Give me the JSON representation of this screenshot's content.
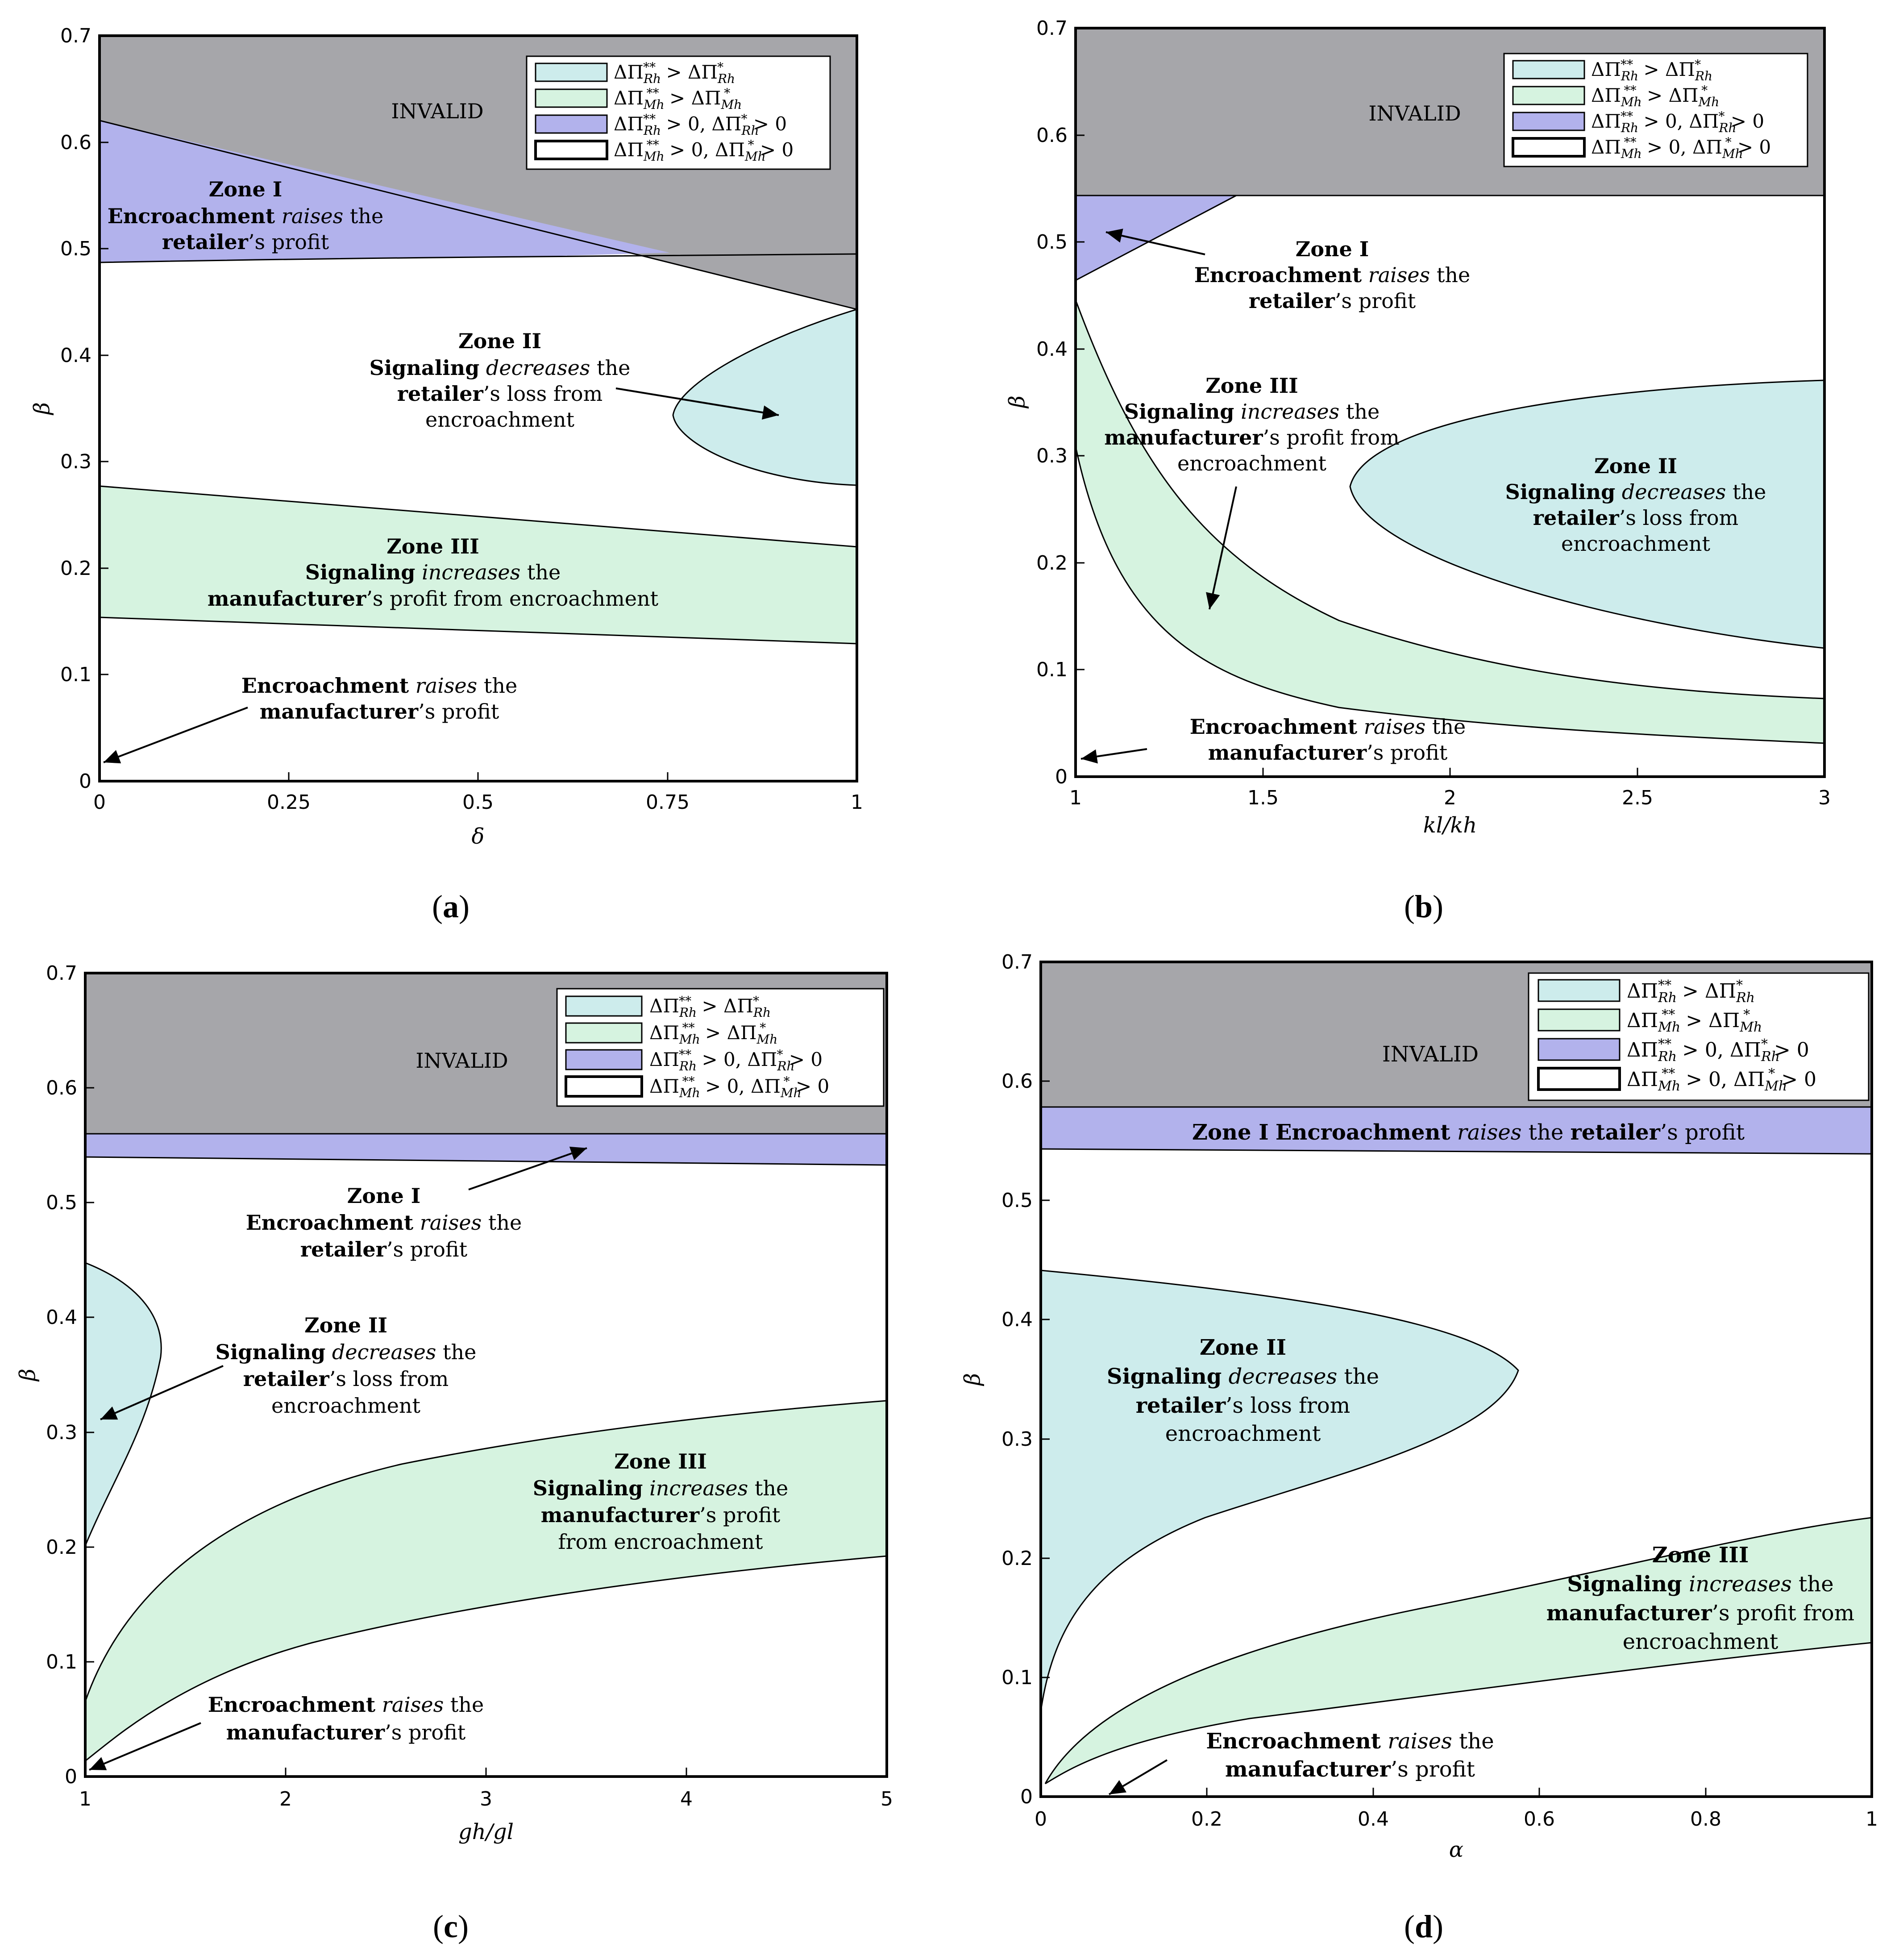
{
  "colors": {
    "invalid": "#a6a6aa",
    "zone1": "#b2b2ec",
    "zone2": "#cdecec",
    "zone3": "#d6f3e0",
    "frame": "#000000"
  },
  "legend": {
    "entry1": {
      "a": "ΔΠ",
      "b": "Rh",
      "c": "**",
      "d": " > ΔΠ",
      "e": "Rh",
      "f": "*"
    },
    "entry2": {
      "a": "ΔΠ",
      "b": "Mh",
      "c": "**",
      "d": " > ΔΠ",
      "e": "Mh",
      "f": "*"
    },
    "entry3": {
      "a": "ΔΠ",
      "b": "Rh",
      "c": "**",
      "d": " > 0, ΔΠ",
      "e": "Rh",
      "f": "*",
      "g": " > 0"
    },
    "entry4": {
      "a": "ΔΠ",
      "b": "Mh",
      "c": "**",
      "d": " > 0, ΔΠ",
      "e": "Mh",
      "f": "*",
      "g": " > 0"
    }
  },
  "text": {
    "invalid": "INVALID",
    "zone1": "Zone I",
    "zone2": "Zone II",
    "zone3": "Zone III",
    "encroachment": "Encroachment",
    "signaling": "Signaling",
    "raises": "raises",
    "decreases": "decreases",
    "increases": "increases",
    "the": " the",
    "retailer": "retailer",
    "manufacturer": "manufacturer",
    "s_profit": "’s profit",
    "s_loss_from": "’s loss from",
    "s_profit_from": "’s profit from",
    "s_profit_from_encroachment": "’s profit from encroachment",
    "from_encroachment": "from encroachment",
    "encroachment_lower": "encroachment",
    "s_profit_full": "’s profit",
    "raises_the_retailer_profit_line": "raises the retailer’s profit"
  },
  "chart_data": [
    {
      "panel": "(a)",
      "type": "area",
      "xlabel": "δ",
      "ylabel": "β",
      "xlim": [
        0,
        1
      ],
      "ylim": [
        0,
        0.7
      ],
      "xticks": [
        "0",
        "0.25",
        "0.5",
        "0.75",
        "1"
      ],
      "yticks": [
        "0",
        "0.1",
        "0.2",
        "0.3",
        "0.4",
        "0.5",
        "0.6",
        "0.7"
      ],
      "series": [
        {
          "name": "Invalid boundary",
          "x": [
            0,
            1
          ],
          "y": [
            0.62,
            0.443
          ]
        },
        {
          "name": "Zone I lower",
          "x": [
            0,
            0.25,
            0.5,
            0.75,
            1
          ],
          "y": [
            0.487,
            0.489,
            0.491,
            0.492,
            0.493
          ]
        },
        {
          "name": "Zone II boundary",
          "x": [
            1,
            0.9,
            0.82,
            0.76,
            0.82,
            0.9,
            1
          ],
          "y": [
            0.441,
            0.41,
            0.375,
            0.34,
            0.308,
            0.29,
            0.277
          ]
        },
        {
          "name": "Zone III upper",
          "x": [
            0,
            1
          ],
          "y": [
            0.276,
            0.221
          ]
        },
        {
          "name": "Zone III lower",
          "x": [
            0,
            1
          ],
          "y": [
            0.154,
            0.128
          ]
        }
      ]
    },
    {
      "panel": "(b)",
      "type": "area",
      "xlabel": "k_l/k_h",
      "ylabel": "β",
      "xlim": [
        1,
        3
      ],
      "ylim": [
        0,
        0.7
      ],
      "xticks": [
        "1",
        "1.5",
        "2",
        "2.5",
        "3"
      ],
      "yticks": [
        "0",
        "0.1",
        "0.2",
        "0.3",
        "0.4",
        "0.5",
        "0.6",
        "0.7"
      ],
      "series": [
        {
          "name": "Invalid boundary",
          "x": [
            1,
            3
          ],
          "y": [
            0.547,
            0.547
          ]
        },
        {
          "name": "Zone I boundary",
          "x": [
            1,
            1.43
          ],
          "y": [
            0.467,
            0.547
          ]
        },
        {
          "name": "Zone II boundary",
          "x": [
            3,
            2.3,
            1.9,
            1.73,
            1.9,
            2.3,
            3
          ],
          "y": [
            0.372,
            0.35,
            0.32,
            0.28,
            0.22,
            0.16,
            0.12
          ]
        },
        {
          "name": "Zone III upper",
          "x": [
            1,
            1.2,
            1.5,
            2,
            2.5,
            3
          ],
          "y": [
            0.452,
            0.3,
            0.19,
            0.125,
            0.093,
            0.076
          ]
        },
        {
          "name": "Zone III lower",
          "x": [
            1,
            1.2,
            1.5,
            2,
            2.5,
            3
          ],
          "y": [
            0.31,
            0.17,
            0.1,
            0.06,
            0.043,
            0.034
          ]
        }
      ]
    },
    {
      "panel": "(c)",
      "type": "area",
      "xlabel": "g_h/g_l",
      "ylabel": "β",
      "xlim": [
        1,
        5
      ],
      "ylim": [
        0,
        0.7
      ],
      "xticks": [
        "1",
        "2",
        "3",
        "4",
        "5"
      ],
      "yticks": [
        "0",
        "0.1",
        "0.2",
        "0.3",
        "0.4",
        "0.5",
        "0.6",
        "0.7"
      ],
      "series": [
        {
          "name": "Invalid boundary",
          "x": [
            1,
            5
          ],
          "y": [
            0.562,
            0.562
          ]
        },
        {
          "name": "Zone I lower",
          "x": [
            1,
            5
          ],
          "y": [
            0.542,
            0.534
          ]
        },
        {
          "name": "Zone II boundary",
          "x": [
            1,
            1.3,
            1.37,
            1.25,
            1
          ],
          "y": [
            0.45,
            0.41,
            0.38,
            0.3,
            0.2
          ]
        },
        {
          "name": "Zone III upper",
          "x": [
            1,
            1.5,
            2,
            3,
            4,
            5
          ],
          "y": [
            0.065,
            0.19,
            0.24,
            0.285,
            0.31,
            0.33
          ]
        },
        {
          "name": "Zone III lower",
          "x": [
            1,
            1.5,
            2,
            3,
            4,
            5
          ],
          "y": [
            0.012,
            0.085,
            0.12,
            0.155,
            0.177,
            0.193
          ]
        }
      ]
    },
    {
      "panel": "(d)",
      "type": "area",
      "xlabel": "α",
      "ylabel": "β",
      "xlim": [
        0,
        1
      ],
      "ylim": [
        0,
        0.7
      ],
      "xticks": [
        "0",
        "0.2",
        "0.4",
        "0.6",
        "0.8",
        "1"
      ],
      "yticks": [
        "0",
        "0.1",
        "0.2",
        "0.3",
        "0.4",
        "0.5",
        "0.6",
        "0.7"
      ],
      "series": [
        {
          "name": "Invalid boundary",
          "x": [
            0,
            1
          ],
          "y": [
            0.579,
            0.579
          ]
        },
        {
          "name": "Zone I lower",
          "x": [
            0,
            1
          ],
          "y": [
            0.543,
            0.539
          ]
        },
        {
          "name": "Zone II boundary",
          "x": [
            0,
            0.3,
            0.5,
            0.575,
            0.45,
            0.2,
            0.05,
            0
          ],
          "y": [
            0.442,
            0.42,
            0.395,
            0.365,
            0.3,
            0.21,
            0.13,
            0.07
          ]
        },
        {
          "name": "Zone III upper",
          "x": [
            0.005,
            0.1,
            0.3,
            0.6,
            1
          ],
          "y": [
            0.01,
            0.1,
            0.16,
            0.205,
            0.235
          ]
        },
        {
          "name": "Zone III lower",
          "x": [
            0.005,
            0.1,
            0.3,
            0.6,
            1
          ],
          "y": [
            0.01,
            0.05,
            0.08,
            0.1,
            0.127
          ]
        }
      ]
    }
  ],
  "panels": {
    "a": {
      "caption": "a",
      "zone2": {
        "l1": "Zone II"
      },
      "zone3": {
        "l1": "Zone III"
      }
    },
    "b": {
      "caption": "b"
    },
    "c": {
      "caption": "c"
    },
    "d": {
      "caption": "d"
    }
  }
}
